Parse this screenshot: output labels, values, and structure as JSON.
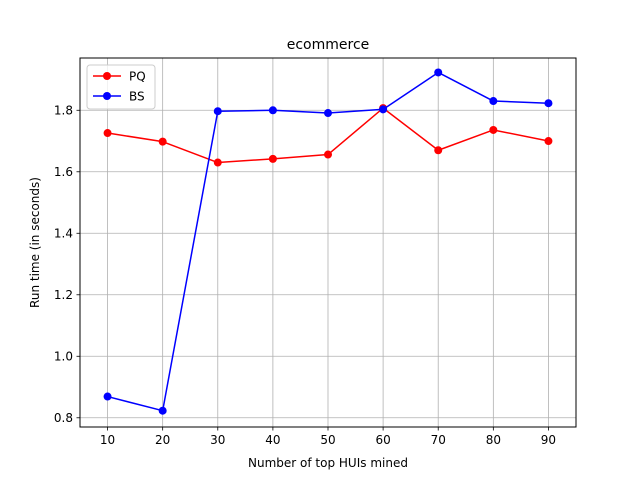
{
  "chart_data": {
    "type": "line",
    "title": "ecommerce",
    "xlabel": "Number of top HUIs mined",
    "ylabel": "Run time (in seconds)",
    "x": [
      10,
      20,
      30,
      40,
      50,
      60,
      70,
      80,
      90
    ],
    "xlim": [
      5,
      95
    ],
    "ylim": [
      0.77,
      1.97
    ],
    "xticks": [
      10,
      20,
      30,
      40,
      50,
      60,
      70,
      80,
      90
    ],
    "yticks": [
      0.8,
      1.0,
      1.2,
      1.4,
      1.6,
      1.8
    ],
    "ytick_labels": [
      "0.8",
      "1.0",
      "1.2",
      "1.4",
      "1.6",
      "1.8"
    ],
    "grid": true,
    "legend_position": "top-left",
    "series": [
      {
        "name": "PQ",
        "color": "#ff0000",
        "marker": "circle",
        "values": [
          1.726,
          1.698,
          1.63,
          1.642,
          1.656,
          1.807,
          1.67,
          1.736,
          1.7
        ]
      },
      {
        "name": "BS",
        "color": "#0000ff",
        "marker": "circle",
        "values": [
          0.869,
          0.823,
          1.797,
          1.8,
          1.791,
          1.803,
          1.923,
          1.83,
          1.823
        ]
      }
    ]
  }
}
